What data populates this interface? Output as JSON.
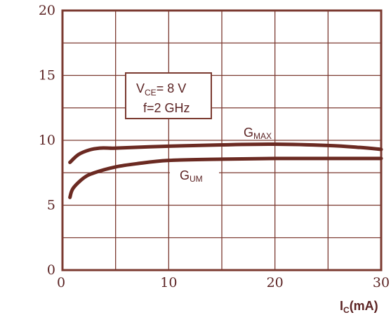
{
  "chart_data": {
    "type": "line",
    "title": "",
    "xlabel": {
      "main": "I",
      "sub": "C",
      "unit": "(mA)"
    },
    "ylabel": "",
    "xlim": [
      0,
      30
    ],
    "ylim": [
      0,
      20
    ],
    "xticks": [
      "0",
      "10",
      "20",
      "30"
    ],
    "yticks": [
      "0",
      "5",
      "10",
      "15",
      "20"
    ],
    "grid": true,
    "conditions": {
      "line1": {
        "main": "V",
        "sub": "CE",
        "rest": "= 8 V"
      },
      "line2": "f=2 GHz"
    },
    "series": [
      {
        "name": {
          "main": "G",
          "sub": "MAX"
        },
        "x": [
          0.7,
          1.5,
          2.5,
          3.5,
          4.5,
          5,
          10,
          15,
          20,
          25,
          28,
          30
        ],
        "y": [
          8.3,
          8.9,
          9.25,
          9.4,
          9.4,
          9.4,
          9.55,
          9.65,
          9.7,
          9.6,
          9.45,
          9.3
        ]
      },
      {
        "name": {
          "main": "G",
          "sub": "UM"
        },
        "x": [
          0.7,
          1,
          2,
          3,
          5,
          7,
          10,
          15,
          20,
          25,
          30
        ],
        "y": [
          5.6,
          6.3,
          7.1,
          7.5,
          7.95,
          8.2,
          8.45,
          8.55,
          8.6,
          8.6,
          8.6
        ]
      }
    ],
    "colors": {
      "frame": "#7b3a30",
      "curve": "#6b2a22",
      "text": "#5b2323"
    }
  }
}
